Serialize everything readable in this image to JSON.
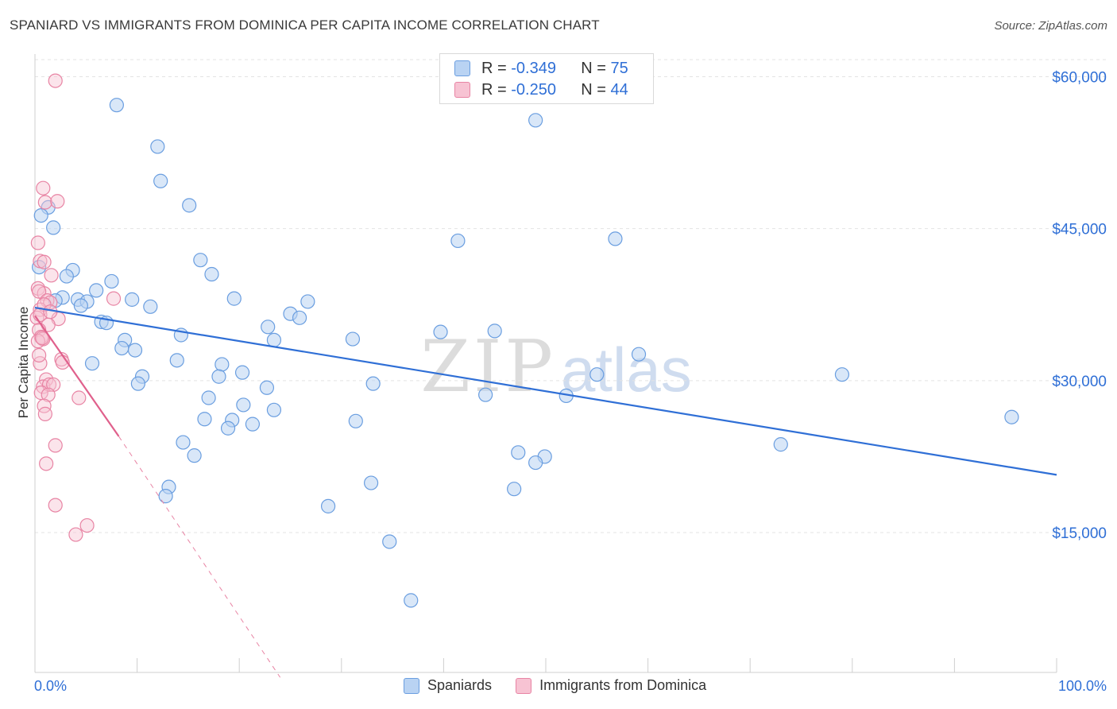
{
  "title": "SPANIARD VS IMMIGRANTS FROM DOMINICA PER CAPITA INCOME CORRELATION CHART",
  "source": "Source: ZipAtlas.com",
  "legend": {
    "rows": [
      {
        "r_label": "R = ",
        "r_value": "-0.349",
        "n_label": "N = ",
        "n_value": "75"
      },
      {
        "r_label": "R = ",
        "r_value": "-0.250",
        "n_label": "N = ",
        "n_value": "44"
      }
    ]
  },
  "colors": {
    "blue_fill": "#b9d3f3",
    "blue_stroke": "#6a9ee0",
    "blue_line": "#2f6fd6",
    "pink_fill": "#f7c3d3",
    "pink_stroke": "#e884a4",
    "pink_line": "#e0608c",
    "grid": "#e3e3e3",
    "tick_label": "#2f6fd6"
  },
  "chart_data": {
    "type": "scatter",
    "title": "SPANIARD VS IMMIGRANTS FROM DOMINICA PER CAPITA INCOME CORRELATION CHART",
    "xlabel": "",
    "ylabel": "Per Capita Income",
    "x_tick_labels": [
      "0.0%",
      "100.0%"
    ],
    "y_tick_labels": [
      "$15,000",
      "$30,000",
      "$45,000",
      "$60,000"
    ],
    "y_ticks": [
      15000,
      30000,
      45000,
      60000
    ],
    "xlim": [
      0,
      100
    ],
    "ylim": [
      0,
      62000
    ],
    "grid": true,
    "legend_position": "top-center",
    "series": [
      {
        "name": "Spaniards",
        "color": "#6a9ee0",
        "trend": {
          "x": [
            0,
            100
          ],
          "y": [
            37200,
            20700
          ]
        },
        "points": [
          [
            8.0,
            57200
          ],
          [
            12.0,
            53100
          ],
          [
            12.3,
            49700
          ],
          [
            15.1,
            47300
          ],
          [
            1.3,
            47100
          ],
          [
            0.6,
            46300
          ],
          [
            1.8,
            45100
          ],
          [
            41.4,
            43800
          ],
          [
            56.8,
            44000
          ],
          [
            16.2,
            41900
          ],
          [
            3.7,
            40900
          ],
          [
            3.1,
            40300
          ],
          [
            17.3,
            40500
          ],
          [
            7.5,
            39800
          ],
          [
            6.0,
            38900
          ],
          [
            2.7,
            38200
          ],
          [
            4.2,
            38000
          ],
          [
            5.1,
            37800
          ],
          [
            9.5,
            38000
          ],
          [
            19.5,
            38100
          ],
          [
            26.7,
            37800
          ],
          [
            11.3,
            37300
          ],
          [
            4.5,
            37400
          ],
          [
            25.0,
            36600
          ],
          [
            25.9,
            36200
          ],
          [
            6.5,
            35800
          ],
          [
            7.0,
            35700
          ],
          [
            22.8,
            35300
          ],
          [
            14.3,
            34500
          ],
          [
            39.7,
            34800
          ],
          [
            45.0,
            34900
          ],
          [
            8.8,
            34000
          ],
          [
            23.4,
            34000
          ],
          [
            31.1,
            34100
          ],
          [
            8.5,
            33200
          ],
          [
            9.8,
            33000
          ],
          [
            59.1,
            32600
          ],
          [
            13.9,
            32000
          ],
          [
            5.6,
            31700
          ],
          [
            18.3,
            31600
          ],
          [
            20.3,
            30800
          ],
          [
            10.5,
            30400
          ],
          [
            18.0,
            30400
          ],
          [
            55.0,
            30600
          ],
          [
            79.0,
            30600
          ],
          [
            10.1,
            29700
          ],
          [
            22.7,
            29300
          ],
          [
            33.1,
            29700
          ],
          [
            17.0,
            28300
          ],
          [
            44.1,
            28600
          ],
          [
            52.0,
            28500
          ],
          [
            20.4,
            27600
          ],
          [
            23.4,
            27100
          ],
          [
            16.6,
            26200
          ],
          [
            19.3,
            26100
          ],
          [
            21.3,
            25700
          ],
          [
            31.4,
            26000
          ],
          [
            18.9,
            25300
          ],
          [
            95.6,
            26400
          ],
          [
            73.0,
            23700
          ],
          [
            14.5,
            23900
          ],
          [
            15.6,
            22600
          ],
          [
            47.3,
            22900
          ],
          [
            49.9,
            22500
          ],
          [
            49.0,
            21900
          ],
          [
            32.9,
            19900
          ],
          [
            13.1,
            19500
          ],
          [
            46.9,
            19300
          ],
          [
            12.8,
            18600
          ],
          [
            28.7,
            17600
          ],
          [
            34.7,
            14100
          ],
          [
            36.8,
            8300
          ],
          [
            49.0,
            55700
          ],
          [
            0.4,
            41200
          ],
          [
            2.0,
            37900
          ]
        ]
      },
      {
        "name": "Immigrants from Dominica",
        "color": "#e884a4",
        "trend": {
          "x": [
            0,
            8.2
          ],
          "y": [
            36400,
            24500
          ]
        },
        "trend_extension": {
          "x": [
            8.2,
            24.0
          ],
          "y": [
            24500,
            700
          ]
        },
        "points": [
          [
            2.0,
            59600
          ],
          [
            0.8,
            49000
          ],
          [
            1.0,
            47600
          ],
          [
            2.2,
            47700
          ],
          [
            0.3,
            43600
          ],
          [
            0.5,
            41800
          ],
          [
            0.9,
            41700
          ],
          [
            1.6,
            40400
          ],
          [
            0.3,
            39100
          ],
          [
            0.9,
            38600
          ],
          [
            0.4,
            38800
          ],
          [
            1.2,
            37900
          ],
          [
            1.5,
            37700
          ],
          [
            7.7,
            38100
          ],
          [
            0.5,
            37000
          ],
          [
            0.9,
            37500
          ],
          [
            0.2,
            36200
          ],
          [
            2.3,
            36100
          ],
          [
            1.3,
            35500
          ],
          [
            0.4,
            35000
          ],
          [
            0.6,
            34300
          ],
          [
            0.8,
            34100
          ],
          [
            0.3,
            33900
          ],
          [
            2.6,
            32100
          ],
          [
            0.5,
            31700
          ],
          [
            1.1,
            30100
          ],
          [
            0.8,
            29400
          ],
          [
            1.4,
            29600
          ],
          [
            1.8,
            29600
          ],
          [
            0.6,
            28800
          ],
          [
            1.3,
            28600
          ],
          [
            4.3,
            28300
          ],
          [
            0.9,
            27500
          ],
          [
            1.0,
            26700
          ],
          [
            2.0,
            23600
          ],
          [
            1.1,
            21800
          ],
          [
            2.0,
            17700
          ],
          [
            5.1,
            15700
          ],
          [
            4.0,
            14800
          ],
          [
            0.5,
            36500
          ],
          [
            0.7,
            34200
          ],
          [
            1.5,
            36800
          ],
          [
            2.7,
            31800
          ],
          [
            0.4,
            32500
          ]
        ]
      }
    ]
  },
  "bottom_legend": [
    "Spaniards",
    "Immigrants from Dominica"
  ]
}
